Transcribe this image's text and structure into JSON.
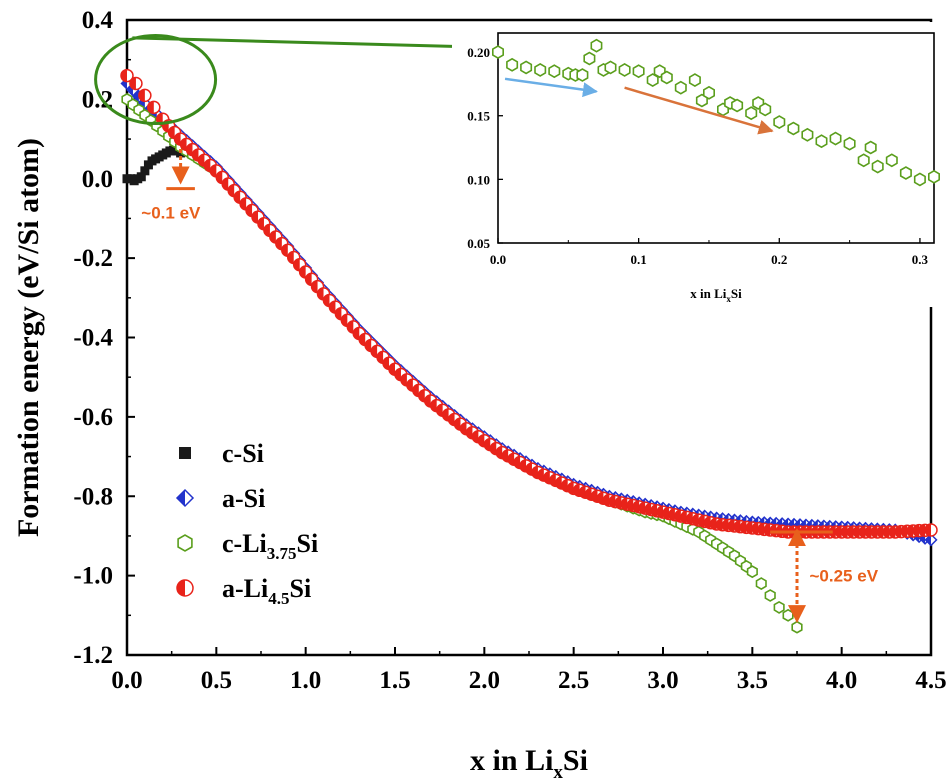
{
  "chart_data": [
    {
      "type": "scatter",
      "xlabel": "x in Li",
      "xlabel_sub": "x",
      "xlabel_tail": "Si",
      "ylabel": "Formation energy (eV/Si atom)",
      "xlim": [
        0,
        4.5
      ],
      "ylim": [
        -1.2,
        0.4
      ],
      "x_ticks": [
        "0.0",
        "0.5",
        "1.0",
        "1.5",
        "2.0",
        "2.5",
        "3.0",
        "3.5",
        "4.0",
        "4.5"
      ],
      "y_ticks": [
        "0.4",
        "0.2",
        "0.0",
        "-0.2",
        "-0.4",
        "-0.6",
        "-0.8",
        "-1.0",
        "-1.2"
      ],
      "legend_position": "lower-left",
      "series": [
        {
          "name": "c-Si",
          "name_parts": [
            [
              "c-Si",
              ""
            ]
          ],
          "marker": "square",
          "color": "#1a1a1a",
          "x": [
            0.0,
            0.02,
            0.04,
            0.06,
            0.08,
            0.1,
            0.12,
            0.14,
            0.16,
            0.18,
            0.2,
            0.22,
            0.24,
            0.26,
            0.28,
            0.3
          ],
          "y": [
            0.0,
            0.0,
            -0.005,
            0.0,
            0.005,
            0.02,
            0.035,
            0.045,
            0.05,
            0.055,
            0.06,
            0.065,
            0.07,
            0.072,
            0.07,
            0.065
          ]
        },
        {
          "name": "a-Si",
          "name_parts": [
            [
              "a-Si",
              ""
            ]
          ],
          "marker": "half-diamond",
          "color": "#2233cc",
          "x": [
            0.0,
            0.1,
            0.2,
            0.3,
            0.4,
            0.5,
            0.7,
            0.9,
            1.1,
            1.3,
            1.5,
            1.7,
            1.9,
            2.1,
            2.3,
            2.5,
            2.7,
            2.9,
            3.1,
            3.3,
            3.5,
            3.7,
            3.9,
            4.1,
            4.3,
            4.5
          ],
          "y": [
            0.24,
            0.19,
            0.15,
            0.11,
            0.07,
            0.03,
            -0.07,
            -0.17,
            -0.28,
            -0.38,
            -0.47,
            -0.55,
            -0.62,
            -0.68,
            -0.73,
            -0.77,
            -0.8,
            -0.82,
            -0.84,
            -0.855,
            -0.865,
            -0.87,
            -0.875,
            -0.88,
            -0.885,
            -0.91
          ]
        },
        {
          "name": "c-Li3.75Si",
          "name_parts": [
            [
              "c-Li",
              ""
            ],
            [
              "3.75",
              "sub"
            ],
            [
              "Si",
              ""
            ]
          ],
          "marker": "hexagon-open",
          "color": "#5a9e1c",
          "x": [
            0.0,
            0.1,
            0.2,
            0.3,
            0.4,
            0.5,
            0.7,
            0.9,
            1.1,
            1.3,
            1.5,
            1.7,
            1.9,
            2.1,
            2.3,
            2.5,
            2.7,
            2.9,
            3.0,
            3.1,
            3.2,
            3.3,
            3.4,
            3.5,
            3.55,
            3.6,
            3.65,
            3.7,
            3.75
          ],
          "y": [
            0.2,
            0.16,
            0.12,
            0.08,
            0.05,
            0.02,
            -0.08,
            -0.18,
            -0.29,
            -0.39,
            -0.48,
            -0.56,
            -0.63,
            -0.69,
            -0.74,
            -0.78,
            -0.81,
            -0.84,
            -0.85,
            -0.87,
            -0.89,
            -0.92,
            -0.95,
            -0.99,
            -1.02,
            -1.05,
            -1.08,
            -1.1,
            -1.13
          ]
        },
        {
          "name": "a-Li4.5Si",
          "name_parts": [
            [
              "a-Li",
              ""
            ],
            [
              "4.5",
              "sub"
            ],
            [
              "Si",
              ""
            ]
          ],
          "marker": "half-circle",
          "color": "#e8231a",
          "x": [
            0.0,
            0.05,
            0.1,
            0.15,
            0.2,
            0.3,
            0.4,
            0.5,
            0.7,
            0.9,
            1.1,
            1.3,
            1.5,
            1.7,
            1.9,
            2.1,
            2.3,
            2.5,
            2.7,
            2.9,
            3.1,
            3.3,
            3.5,
            3.7,
            3.9,
            4.1,
            4.3,
            4.5
          ],
          "y": [
            0.26,
            0.24,
            0.21,
            0.18,
            0.15,
            0.1,
            0.06,
            0.02,
            -0.08,
            -0.18,
            -0.29,
            -0.39,
            -0.48,
            -0.56,
            -0.63,
            -0.69,
            -0.74,
            -0.78,
            -0.81,
            -0.83,
            -0.85,
            -0.87,
            -0.88,
            -0.89,
            -0.89,
            -0.89,
            -0.89,
            -0.885
          ]
        }
      ],
      "annotations": [
        {
          "text": "~0.1 eV",
          "color": "#e8601c"
        },
        {
          "text": "~0.25 eV",
          "color": "#e8601c"
        }
      ]
    },
    {
      "type": "scatter",
      "xlabel": "x in Li",
      "xlabel_sub": "x",
      "xlabel_tail": "Si",
      "xlim": [
        0,
        0.31
      ],
      "ylim": [
        0.05,
        0.215
      ],
      "x_ticks": [
        "0.0",
        "0.1",
        "0.2",
        "0.3"
      ],
      "y_ticks": [
        "0.20",
        "0.15",
        "0.10",
        "0.05"
      ],
      "series": [
        {
          "name": "c-Li3.75Si",
          "marker": "hexagon-open",
          "color": "#5a9e1c",
          "x": [
            0.0,
            0.01,
            0.02,
            0.03,
            0.04,
            0.05,
            0.055,
            0.06,
            0.065,
            0.07,
            0.075,
            0.08,
            0.09,
            0.1,
            0.11,
            0.115,
            0.12,
            0.13,
            0.14,
            0.145,
            0.15,
            0.16,
            0.165,
            0.17,
            0.18,
            0.185,
            0.19,
            0.2,
            0.21,
            0.22,
            0.23,
            0.24,
            0.25,
            0.26,
            0.265,
            0.27,
            0.28,
            0.29,
            0.3,
            0.31
          ],
          "y": [
            0.2,
            0.19,
            0.188,
            0.186,
            0.185,
            0.183,
            0.182,
            0.182,
            0.195,
            0.205,
            0.186,
            0.188,
            0.186,
            0.185,
            0.178,
            0.185,
            0.18,
            0.172,
            0.178,
            0.162,
            0.168,
            0.155,
            0.16,
            0.158,
            0.152,
            0.16,
            0.155,
            0.145,
            0.14,
            0.135,
            0.13,
            0.132,
            0.128,
            0.115,
            0.125,
            0.11,
            0.115,
            0.105,
            0.1,
            0.102
          ]
        }
      ],
      "arrows": [
        {
          "color": "#6aaee6"
        },
        {
          "color": "#d9733a"
        }
      ]
    }
  ]
}
